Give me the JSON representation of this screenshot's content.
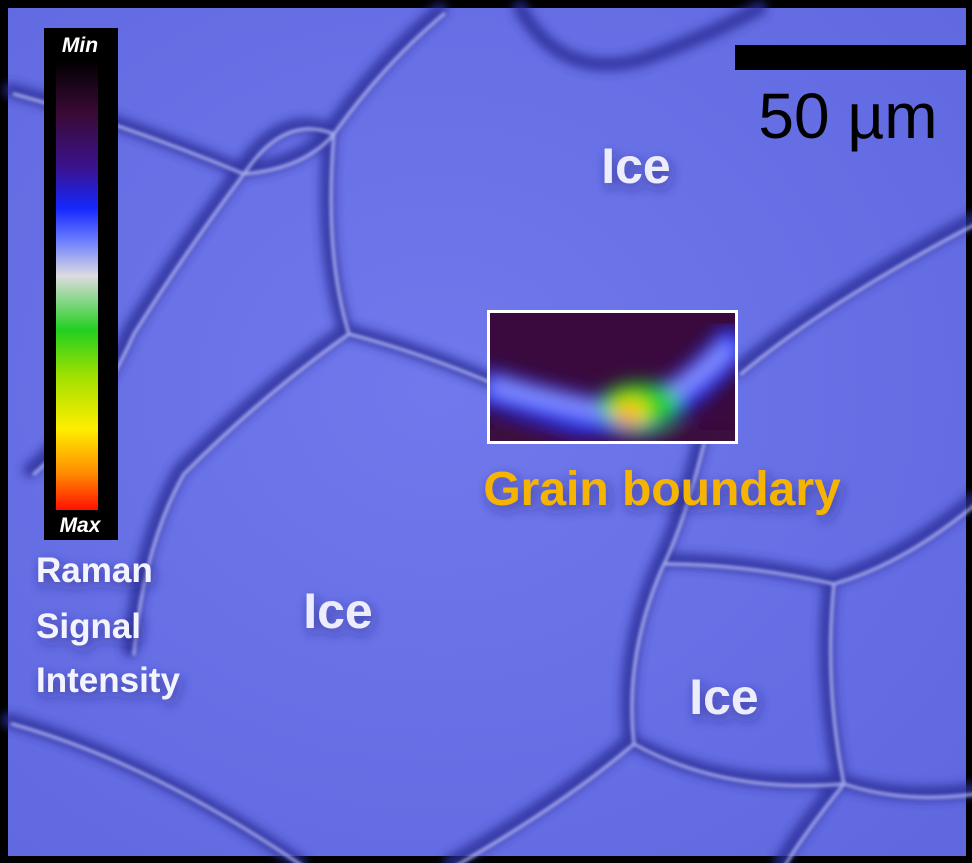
{
  "colorbar": {
    "min_label": "Min",
    "max_label": "Max",
    "caption": [
      "Raman",
      "Signal",
      "Intensity"
    ]
  },
  "scale_bar": {
    "label": "50 µm"
  },
  "regions": [
    "Ice",
    "Ice",
    "Ice"
  ],
  "inset": {
    "label": "Grain boundary"
  }
}
